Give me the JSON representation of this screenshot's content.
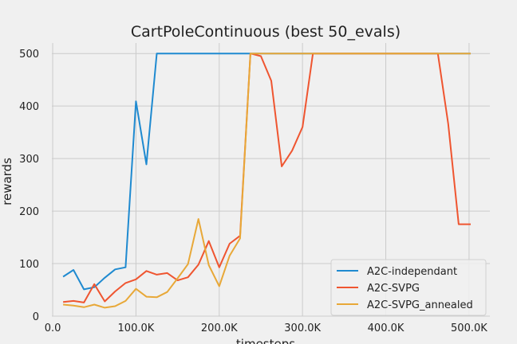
{
  "chart_data": {
    "type": "line",
    "title": "CartPoleContinuous (best 50_evals)",
    "xlabel": "timesteps",
    "ylabel": "rewards",
    "xlim": [
      -1000,
      525000
    ],
    "ylim": [
      0,
      520
    ],
    "x_ticks": [
      0,
      100000,
      200000,
      300000,
      400000,
      500000
    ],
    "x_tick_labels": [
      "0.0",
      "100.0K",
      "200.0K",
      "300.0K",
      "400.0K",
      "500.0K"
    ],
    "y_ticks": [
      0,
      100,
      200,
      300,
      400,
      500
    ],
    "y_tick_labels": [
      "0",
      "100",
      "200",
      "300",
      "400",
      "500"
    ],
    "grid": true,
    "legend_position": "bottom-right",
    "series": [
      {
        "name": "A2C-independant",
        "color": "#1f8ad0",
        "x": [
          12500,
          25000,
          37500,
          50000,
          62500,
          75000,
          87500,
          100000,
          112500,
          125000,
          137500,
          150000,
          162500,
          175000,
          187500,
          200000,
          212500,
          225000,
          237500,
          250000,
          262500,
          275000,
          287500,
          300000,
          312500,
          325000,
          337500,
          350000,
          362500,
          375000,
          387500,
          400000,
          412500,
          425000,
          437500,
          450000,
          462500,
          475000,
          487500,
          500000,
          502000
        ],
        "y": [
          75,
          88,
          51,
          55,
          73,
          89,
          93,
          409,
          289,
          500,
          500,
          500,
          500,
          500,
          500,
          500,
          500,
          500,
          500,
          500,
          500,
          500,
          500,
          500,
          500,
          500,
          500,
          500,
          500,
          500,
          500,
          500,
          500,
          500,
          500,
          500,
          500,
          500,
          500,
          500,
          500
        ]
      },
      {
        "name": "A2C-SVPG",
        "color": "#ef5530",
        "x": [
          12500,
          25000,
          37500,
          50000,
          62500,
          75000,
          87500,
          100000,
          112500,
          125000,
          137500,
          150000,
          162500,
          175000,
          187500,
          200000,
          212500,
          225000,
          237500,
          250000,
          262500,
          275000,
          287500,
          300000,
          312500,
          325000,
          337500,
          350000,
          362500,
          375000,
          387500,
          400000,
          412500,
          425000,
          437500,
          450000,
          462500,
          475000,
          487500,
          500000,
          502000
        ],
        "y": [
          27,
          29,
          26,
          61,
          28,
          47,
          63,
          70,
          86,
          79,
          82,
          68,
          74,
          98,
          143,
          93,
          138,
          153,
          500,
          495,
          448,
          285,
          315,
          360,
          500,
          500,
          500,
          500,
          500,
          500,
          500,
          500,
          500,
          500,
          500,
          500,
          500,
          366,
          175,
          175,
          175
        ]
      },
      {
        "name": "A2C-SVPG_annealed",
        "color": "#e8a838",
        "x": [
          12500,
          25000,
          37500,
          50000,
          62500,
          75000,
          87500,
          100000,
          112500,
          125000,
          137500,
          150000,
          162500,
          175000,
          187500,
          200000,
          212500,
          225000,
          237500,
          250000,
          262500,
          275000,
          287500,
          300000,
          312500,
          325000,
          337500,
          350000,
          362500,
          375000,
          387500,
          400000,
          412500,
          425000,
          437500,
          450000,
          462500,
          475000,
          487500,
          500000,
          502000
        ],
        "y": [
          22,
          20,
          17,
          22,
          16,
          19,
          29,
          52,
          37,
          36,
          46,
          72,
          99,
          185,
          97,
          57,
          115,
          148,
          500,
          500,
          500,
          500,
          500,
          500,
          500,
          500,
          500,
          500,
          500,
          500,
          500,
          500,
          500,
          500,
          500,
          500,
          500,
          500,
          500,
          500,
          500
        ]
      }
    ]
  }
}
